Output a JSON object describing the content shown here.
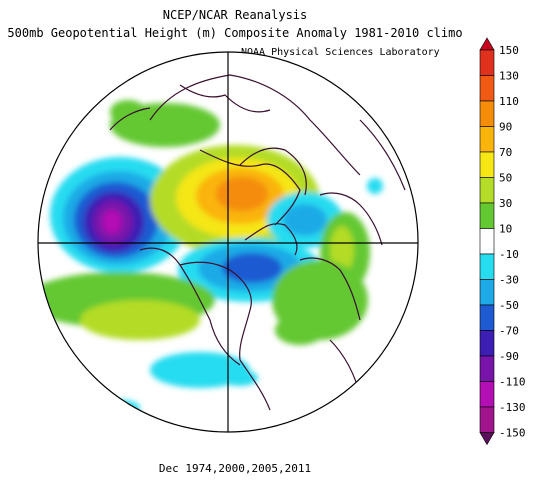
{
  "header": {
    "title_line1": "NCEP/NCAR Reanalysis",
    "title_line2": "500mb Geopotential Height (m) Composite Anomaly 1981-2010 climo",
    "credit": "NOAA Physical Sciences Laboratory"
  },
  "footer": {
    "dates": "Dec 1974,2000,2005,2011"
  },
  "colorbar": {
    "labels": [
      "150",
      "130",
      "110",
      "90",
      "70",
      "50",
      "30",
      "10",
      "-10",
      "-30",
      "-50",
      "-70",
      "-90",
      "-110",
      "-130",
      "-150"
    ],
    "colors": [
      "#c8001e",
      "#e0301e",
      "#f05a14",
      "#f58c0a",
      "#fab40a",
      "#f5e614",
      "#b4dc28",
      "#64c832",
      "#ffffff",
      "#28dcf0",
      "#1eaae6",
      "#1e5ad2",
      "#3c1eb4",
      "#7814aa",
      "#b40fb4",
      "#a0148c",
      "#5a0f5a"
    ]
  },
  "map": {
    "projection": "north-polar-stereographic",
    "color_fill": {
      "land_outline": "#3a1030",
      "grid_lines": "#000000"
    }
  }
}
